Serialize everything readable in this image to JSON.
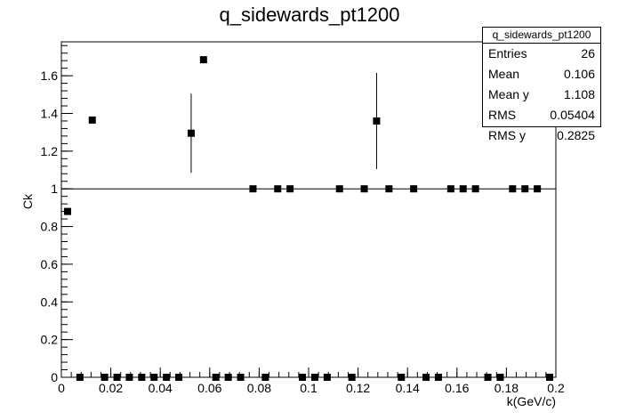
{
  "chart_data": {
    "type": "scatter",
    "title": "q_sidewards_pt1200",
    "xlabel": "k(GeV/c)",
    "ylabel": "Ck",
    "xlim": [
      0,
      0.2
    ],
    "ylim": [
      0,
      1.78
    ],
    "x_ticks": [
      "0",
      "0.02",
      "0.04",
      "0.06",
      "0.08",
      "0.1",
      "0.12",
      "0.14",
      "0.16",
      "0.18",
      "0.2"
    ],
    "y_ticks": [
      "0",
      "0.2",
      "0.4",
      "0.6",
      "0.8",
      "1",
      "1.2",
      "1.4",
      "1.6"
    ],
    "reference_line_y": 1,
    "points": [
      {
        "x": 0.0025,
        "y": 0.88,
        "err": 0.0
      },
      {
        "x": 0.0075,
        "y": 0.0,
        "err": 0.0
      },
      {
        "x": 0.0125,
        "y": 1.365,
        "err": 0.0
      },
      {
        "x": 0.0175,
        "y": 0.0,
        "err": 0.0
      },
      {
        "x": 0.0225,
        "y": 0.0,
        "err": 0.0
      },
      {
        "x": 0.0275,
        "y": 0.0,
        "err": 0.0
      },
      {
        "x": 0.0325,
        "y": 0.0,
        "err": 0.0
      },
      {
        "x": 0.0375,
        "y": 0.0,
        "err": 0.0
      },
      {
        "x": 0.0425,
        "y": 0.0,
        "err": 0.0
      },
      {
        "x": 0.0475,
        "y": 0.0,
        "err": 0.0
      },
      {
        "x": 0.0525,
        "y": 1.295,
        "err": 0.21
      },
      {
        "x": 0.0575,
        "y": 1.685,
        "err": 0.0
      },
      {
        "x": 0.0625,
        "y": 0.0,
        "err": 0.0
      },
      {
        "x": 0.0675,
        "y": 0.0,
        "err": 0.0
      },
      {
        "x": 0.0725,
        "y": 0.0,
        "err": 0.0
      },
      {
        "x": 0.0775,
        "y": 1.0,
        "err": 0.0
      },
      {
        "x": 0.0825,
        "y": 0.0,
        "err": 0.0
      },
      {
        "x": 0.0875,
        "y": 1.0,
        "err": 0.0
      },
      {
        "x": 0.0925,
        "y": 1.0,
        "err": 0.0
      },
      {
        "x": 0.0975,
        "y": 0.0,
        "err": 0.0
      },
      {
        "x": 0.1025,
        "y": 0.0,
        "err": 0.0
      },
      {
        "x": 0.1075,
        "y": 0.0,
        "err": 0.0
      },
      {
        "x": 0.1125,
        "y": 1.0,
        "err": 0.0
      },
      {
        "x": 0.1175,
        "y": 0.0,
        "err": 0.0
      },
      {
        "x": 0.1225,
        "y": 1.0,
        "err": 0.0
      },
      {
        "x": 0.1275,
        "y": 1.36,
        "err": 0.255
      },
      {
        "x": 0.1325,
        "y": 1.0,
        "err": 0.0
      },
      {
        "x": 0.1375,
        "y": 0.0,
        "err": 0.0
      },
      {
        "x": 0.1425,
        "y": 1.0,
        "err": 0.0
      },
      {
        "x": 0.1475,
        "y": 0.0,
        "err": 0.0
      },
      {
        "x": 0.1525,
        "y": 0.0,
        "err": 0.0
      },
      {
        "x": 0.1575,
        "y": 1.0,
        "err": 0.0
      },
      {
        "x": 0.1625,
        "y": 1.0,
        "err": 0.0
      },
      {
        "x": 0.1675,
        "y": 1.0,
        "err": 0.0
      },
      {
        "x": 0.1725,
        "y": 0.0,
        "err": 0.0
      },
      {
        "x": 0.1775,
        "y": 0.0,
        "err": 0.0
      },
      {
        "x": 0.1825,
        "y": 1.0,
        "err": 0.0
      },
      {
        "x": 0.1875,
        "y": 1.0,
        "err": 0.0
      },
      {
        "x": 0.1925,
        "y": 1.0,
        "err": 0.0
      },
      {
        "x": 0.1975,
        "y": 0.0,
        "err": 0.0
      }
    ],
    "stats": {
      "title": "q_sidewards_pt1200",
      "rows": [
        {
          "label": "Entries",
          "value": "26"
        },
        {
          "label": "Mean",
          "value": "0.106"
        },
        {
          "label": "Mean y",
          "value": "1.108"
        },
        {
          "label": "RMS",
          "value": "0.05404"
        },
        {
          "label": "RMS y",
          "value": "0.2825"
        }
      ]
    },
    "colors": {
      "marker": "#000000",
      "axis": "#000000",
      "background": "#ffffff"
    }
  }
}
